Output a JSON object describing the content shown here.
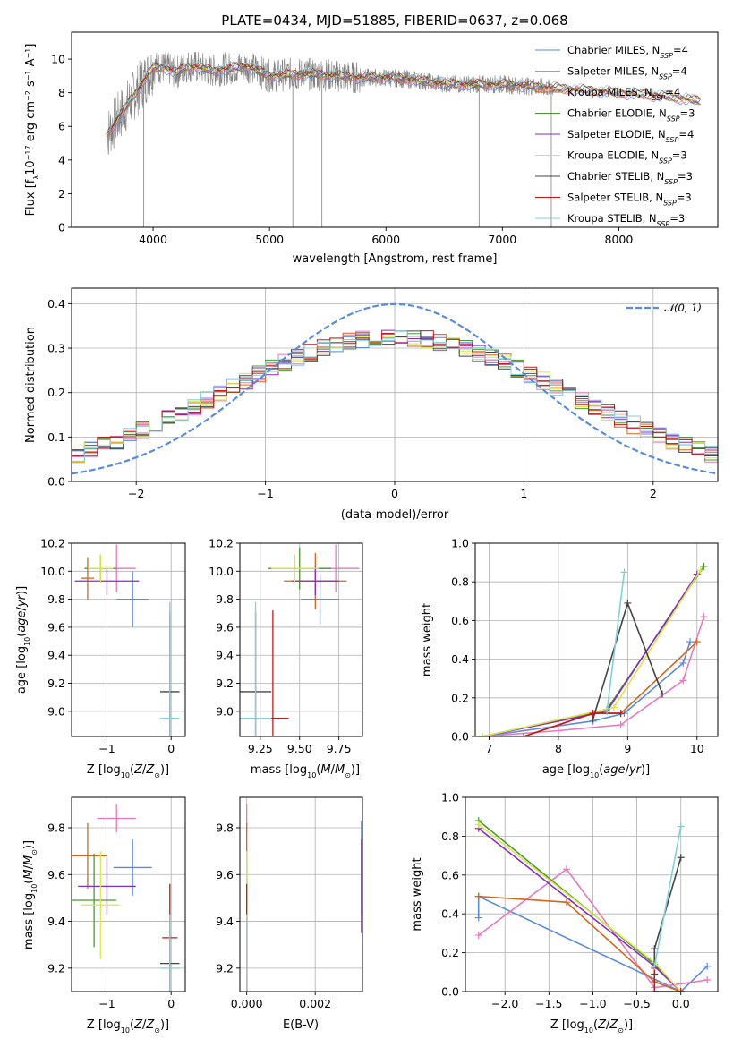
{
  "series_colors": [
    "#5b8bdb",
    "#e679bd",
    "#d6661c",
    "#4a9a33",
    "#8a2bc2",
    "#d7e845",
    "#444444",
    "#c91717",
    "#7fd2d8"
  ],
  "chart_data": [
    {
      "type": "line",
      "title": "PLATE=0434, MJD=51885, FIBERID=0637, z=0.068",
      "xlabel": "wavelength [Angstrom, rest frame]",
      "ylabel": "Flux [f",
      "xlim": [
        3300,
        8850
      ],
      "ylim": [
        0,
        11.6
      ],
      "xticks": [
        4000,
        5000,
        6000,
        7000,
        8000
      ],
      "yticks": [
        0,
        2,
        4,
        6,
        8,
        10
      ],
      "continuum_x": [
        3600,
        3700,
        3800,
        3900,
        4000,
        4100,
        4200,
        4300,
        4400,
        4500,
        4600,
        4700,
        4800,
        4900,
        5000,
        5200,
        5400,
        5600,
        5800,
        6000,
        6200,
        6400,
        6600,
        6800,
        7000,
        7200,
        7400,
        7600,
        7800,
        8000,
        8200,
        8400,
        8600,
        8700
      ],
      "continuum_y": [
        5.5,
        6.5,
        7.5,
        8.5,
        9.5,
        9.5,
        9.2,
        9.6,
        9.5,
        9.3,
        9.4,
        9.5,
        9.6,
        9.3,
        9.0,
        9.1,
        9.1,
        9.0,
        8.9,
        8.9,
        8.8,
        8.6,
        8.5,
        8.5,
        8.5,
        8.4,
        8.3,
        8.2,
        8.1,
        8.0,
        7.9,
        7.8,
        7.6,
        7.5
      ],
      "data_range": [
        3600,
        7450
      ],
      "spikes": [
        {
          "x": 3920,
          "y": 0
        },
        {
          "x": 5200,
          "y": 0
        },
        {
          "x": 5450,
          "y": 0
        },
        {
          "x": 6800,
          "y": 0
        },
        {
          "x": 7420,
          "y": 0
        }
      ],
      "legend": [
        {
          "name": "Chabrier MILES, N",
          "sub": "SSP",
          "tail": "=4"
        },
        {
          "name": "Salpeter MILES, N",
          "sub": "SSP",
          "tail": "=4"
        },
        {
          "name": "Kroupa MILES, N",
          "sub": "SSP",
          "tail": "=4"
        },
        {
          "name": "Chabrier ELODIE, N",
          "sub": "SSP",
          "tail": "=3"
        },
        {
          "name": "Salpeter ELODIE, N",
          "sub": "SSP",
          "tail": "=4"
        },
        {
          "name": "Kroupa ELODIE, N",
          "sub": "SSP",
          "tail": "=3"
        },
        {
          "name": "Chabrier STELIB, N",
          "sub": "SSP",
          "tail": "=3"
        },
        {
          "name": "Salpeter STELIB, N",
          "sub": "SSP",
          "tail": "=3"
        },
        {
          "name": "Kroupa STELIB, N",
          "sub": "SSP",
          "tail": "=3"
        }
      ]
    },
    {
      "type": "histogram",
      "xlabel": "(data-model)/error",
      "ylabel": "Normed distribution",
      "xlim": [
        -2.5,
        2.5
      ],
      "ylim": [
        0,
        0.435
      ],
      "xticks": [
        -2,
        -1,
        0,
        1,
        2
      ],
      "yticks": [
        0.0,
        0.1,
        0.2,
        0.3,
        0.4
      ],
      "bin_width": 0.1,
      "gauss_label": "𝒩(0, 1)",
      "gauss_color": "#5b8bdb"
    },
    {
      "type": "errorbar",
      "xlabel": "Z [log",
      "ylabel": "age  [log",
      "xlim": [
        -1.55,
        0.22
      ],
      "ylim": [
        8.82,
        10.2
      ],
      "xticks": [
        -1,
        0
      ],
      "yticks": [
        9.0,
        9.2,
        9.4,
        9.6,
        9.8,
        10.0,
        10.2
      ],
      "points": [
        {
          "x": -0.6,
          "xe": 0.25,
          "y": 9.8,
          "ye": 0.2
        },
        {
          "x": -0.85,
          "xe": 0.3,
          "y": 10.02,
          "ye": 0.17
        },
        {
          "x": -1.3,
          "xe": 0.1,
          "y": 9.95,
          "ye": 0.15
        },
        {
          "x": -1.1,
          "xe": 0.25,
          "y": 10.02,
          "ye": 0.1
        },
        {
          "x": -1.0,
          "xe": 0.5,
          "y": 9.93,
          "ye": 0.1
        },
        {
          "x": -1.1,
          "xe": 0.2,
          "y": 10.02,
          "ye": 0.1
        },
        {
          "x": -0.02,
          "xe": 0.15,
          "y": 9.14,
          "ye": 0.57
        },
        {
          "x": -0.02,
          "xe": 0.05,
          "y": 8.95,
          "ye": 0.1
        },
        {
          "x": -0.02,
          "xe": 0.15,
          "y": 8.95,
          "ye": 0.83
        }
      ]
    },
    {
      "type": "errorbar",
      "xlabel": "mass [log",
      "ylabel": "",
      "xlim": [
        9.12,
        9.9
      ],
      "ylim": [
        8.82,
        10.2
      ],
      "xticks": [
        9.25,
        9.5,
        9.75
      ],
      "yticks": [
        9.0,
        9.2,
        9.4,
        9.6,
        9.8,
        10.0,
        10.2
      ],
      "points": [
        {
          "x": 9.63,
          "xe": 0.12,
          "y": 9.8,
          "ye": 0.18
        },
        {
          "x": 9.73,
          "xe": 0.15,
          "y": 10.02,
          "ye": 0.17
        },
        {
          "x": 9.6,
          "xe": 0.2,
          "y": 9.93,
          "ye": 0.2
        },
        {
          "x": 9.5,
          "xe": 0.2,
          "y": 10.02,
          "ye": 0.15
        },
        {
          "x": 9.6,
          "xe": 0.15,
          "y": 9.93,
          "ye": 0.1
        },
        {
          "x": 9.47,
          "xe": 0.15,
          "y": 10.02,
          "ye": 0.1
        },
        {
          "x": 9.22,
          "xe": 0.1,
          "y": 9.14,
          "ye": 0.57
        },
        {
          "x": 9.33,
          "xe": 0.1,
          "y": 8.95,
          "ye": 0.77
        },
        {
          "x": 9.22,
          "xe": 0.1,
          "y": 8.95,
          "ye": 0.83
        }
      ]
    },
    {
      "type": "line",
      "xlabel": "age  [log",
      "ylabel": "mass weight",
      "xlim": [
        6.8,
        10.3
      ],
      "ylim": [
        0,
        1
      ],
      "xticks": [
        7,
        8,
        9,
        10
      ],
      "yticks": [
        0.0,
        0.2,
        0.4,
        0.6,
        0.8,
        1.0
      ],
      "series": [
        {
          "x": [
            6.9,
            8.5,
            8.95,
            9.8,
            9.9
          ],
          "y": [
            0.0,
            0.08,
            0.12,
            0.38,
            0.49
          ]
        },
        {
          "x": [
            6.9,
            8.0,
            8.9,
            9.8,
            10.1
          ],
          "y": [
            0.0,
            0.03,
            0.06,
            0.29,
            0.62
          ]
        },
        {
          "x": [
            7.5,
            8.5,
            8.9,
            10.0
          ],
          "y": [
            0.0,
            0.12,
            0.12,
            0.49
          ]
        },
        {
          "x": [
            6.9,
            8.7,
            10.1
          ],
          "y": [
            0.0,
            0.14,
            0.88
          ]
        },
        {
          "x": [
            6.9,
            8.7,
            10.0
          ],
          "y": [
            0.0,
            0.13,
            0.84
          ]
        },
        {
          "x": [
            6.9,
            8.8,
            10.05
          ],
          "y": [
            0.0,
            0.15,
            0.86
          ]
        },
        {
          "x": [
            8.5,
            9.0,
            9.5
          ],
          "y": [
            0.09,
            0.69,
            0.22
          ]
        },
        {
          "x": [
            7.5,
            8.5,
            8.9
          ],
          "y": [
            0.0,
            0.12,
            0.12
          ]
        },
        {
          "x": [
            8.7,
            8.95
          ],
          "y": [
            0.13,
            0.85
          ]
        }
      ]
    },
    {
      "type": "errorbar",
      "xlabel": "Z [log",
      "ylabel": "mass [log",
      "xlim": [
        -1.55,
        0.22
      ],
      "ylim": [
        9.1,
        9.93
      ],
      "xticks": [
        -1,
        0
      ],
      "yticks": [
        9.2,
        9.4,
        9.6,
        9.8
      ],
      "points": [
        {
          "x": -0.6,
          "xe": 0.3,
          "y": 9.63,
          "ye": 0.12
        },
        {
          "x": -0.85,
          "xe": 0.3,
          "y": 9.84,
          "ye": 0.06
        },
        {
          "x": -1.3,
          "xe": 0.3,
          "y": 9.68,
          "ye": 0.14
        },
        {
          "x": -1.2,
          "xe": 0.35,
          "y": 9.49,
          "ye": 0.2
        },
        {
          "x": -1.0,
          "xe": 0.45,
          "y": 9.55,
          "ye": 0.12
        },
        {
          "x": -1.1,
          "xe": 0.3,
          "y": 9.47,
          "ye": 0.23
        },
        {
          "x": -0.02,
          "xe": 0.15,
          "y": 9.22,
          "ye": 0.2
        },
        {
          "x": -0.02,
          "xe": 0.12,
          "y": 9.33,
          "ye": 0.23
        },
        {
          "x": -0.02,
          "xe": 0.15,
          "y": 9.2,
          "ye": 0.23
        }
      ]
    },
    {
      "type": "errorbar",
      "xlabel": "E(B-V)",
      "ylabel": "",
      "xlim": [
        -0.0002,
        0.00338
      ],
      "ylim": [
        9.1,
        9.93
      ],
      "xticks": [
        0.0,
        0.002
      ],
      "xticklabels": [
        "0.000",
        "0.002"
      ],
      "yticks": [
        9.2,
        9.4,
        9.6,
        9.8
      ],
      "points": [
        {
          "x": 0.00335,
          "xe": 0,
          "y": 9.63,
          "ye": 0.2
        },
        {
          "x": 0.0,
          "xe": 0,
          "y": 9.84,
          "ye": 0.06
        },
        {
          "x": 0.0,
          "xe": 0,
          "y": 9.68,
          "ye": 0.14
        },
        {
          "x": 0.0,
          "xe": 0,
          "y": 9.49,
          "ye": 0.2
        },
        {
          "x": 0.00335,
          "xe": 0,
          "y": 9.55,
          "ye": 0.2
        },
        {
          "x": 0.0,
          "xe": 0,
          "y": 9.47,
          "ye": 0.23
        },
        {
          "x": 0.0,
          "xe": 0,
          "y": 9.22,
          "ye": 0.2
        },
        {
          "x": 0.0,
          "xe": 0,
          "y": 9.33,
          "ye": 0.23
        },
        {
          "x": 0.0,
          "xe": 0,
          "y": 9.2,
          "ye": 0.23
        }
      ]
    },
    {
      "type": "line",
      "xlabel": "Z [log",
      "ylabel": "mass weight",
      "xlim": [
        -2.45,
        0.42
      ],
      "ylim": [
        0,
        1
      ],
      "xticks": [
        -2.0,
        -1.5,
        -1.0,
        -0.5,
        0.0
      ],
      "xticklabels": [
        "−2.0",
        "−1.5",
        "−1.0",
        "−0.5",
        "0.0"
      ],
      "yticks": [
        0.0,
        0.2,
        0.4,
        0.6,
        0.8,
        1.0
      ],
      "series": [
        {
          "x": [
            -2.3,
            -2.3,
            0.0,
            0.3
          ],
          "y": [
            0.38,
            0.49,
            0.0,
            0.13
          ]
        },
        {
          "x": [
            -2.3,
            -1.3,
            -0.3,
            0.3
          ],
          "y": [
            0.29,
            0.63,
            0.02,
            0.06
          ]
        },
        {
          "x": [
            -2.3,
            -1.3,
            -0.3,
            0.0
          ],
          "y": [
            0.49,
            0.46,
            0.05,
            0.0
          ]
        },
        {
          "x": [
            -2.3,
            -0.3,
            0.0
          ],
          "y": [
            0.88,
            0.14,
            0.0
          ]
        },
        {
          "x": [
            -2.3,
            -0.3,
            0.0
          ],
          "y": [
            0.84,
            0.13,
            0.0
          ]
        },
        {
          "x": [
            -2.3,
            -0.3,
            0.0
          ],
          "y": [
            0.86,
            0.15,
            0.0
          ]
        },
        {
          "x": [
            -0.3,
            -0.3,
            0.0
          ],
          "y": [
            0.09,
            0.22,
            0.69
          ]
        },
        {
          "x": [
            -0.3,
            -0.3,
            0.0
          ],
          "y": [
            0.12,
            0.0,
            0.0
          ]
        },
        {
          "x": [
            -0.3,
            0.0,
            0.0
          ],
          "y": [
            0.13,
            0.85,
            0.85
          ]
        }
      ]
    }
  ]
}
